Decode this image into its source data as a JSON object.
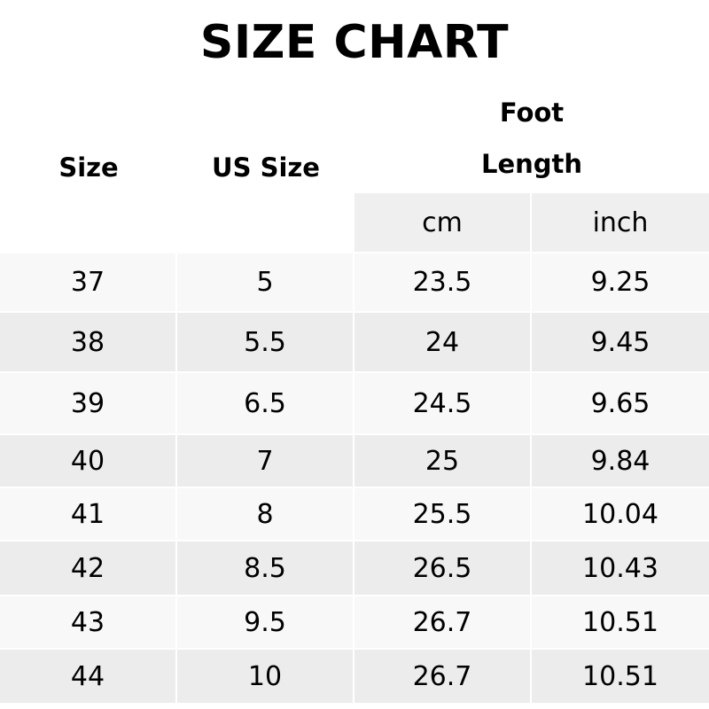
{
  "title": "SIZE CHART",
  "headers": {
    "size": "Size",
    "us_size": "US Size",
    "foot_length_line1": "Foot",
    "foot_length_line2": "Length",
    "cm": "cm",
    "inch": "inch"
  },
  "rows": [
    [
      "37",
      "5",
      "23.5",
      "9.25"
    ],
    [
      "38",
      "5.5",
      "24",
      "9.45"
    ],
    [
      "39",
      "6.5",
      "24.5",
      "9.65"
    ],
    [
      "40",
      "7",
      "25",
      "9.84"
    ],
    [
      "41",
      "8",
      "25.5",
      "10.04"
    ],
    [
      "42",
      "8.5",
      "26.5",
      "10.43"
    ],
    [
      "43",
      "9.5",
      "26.7",
      "10.51"
    ],
    [
      "44",
      "10",
      "26.7",
      "10.51"
    ]
  ]
}
